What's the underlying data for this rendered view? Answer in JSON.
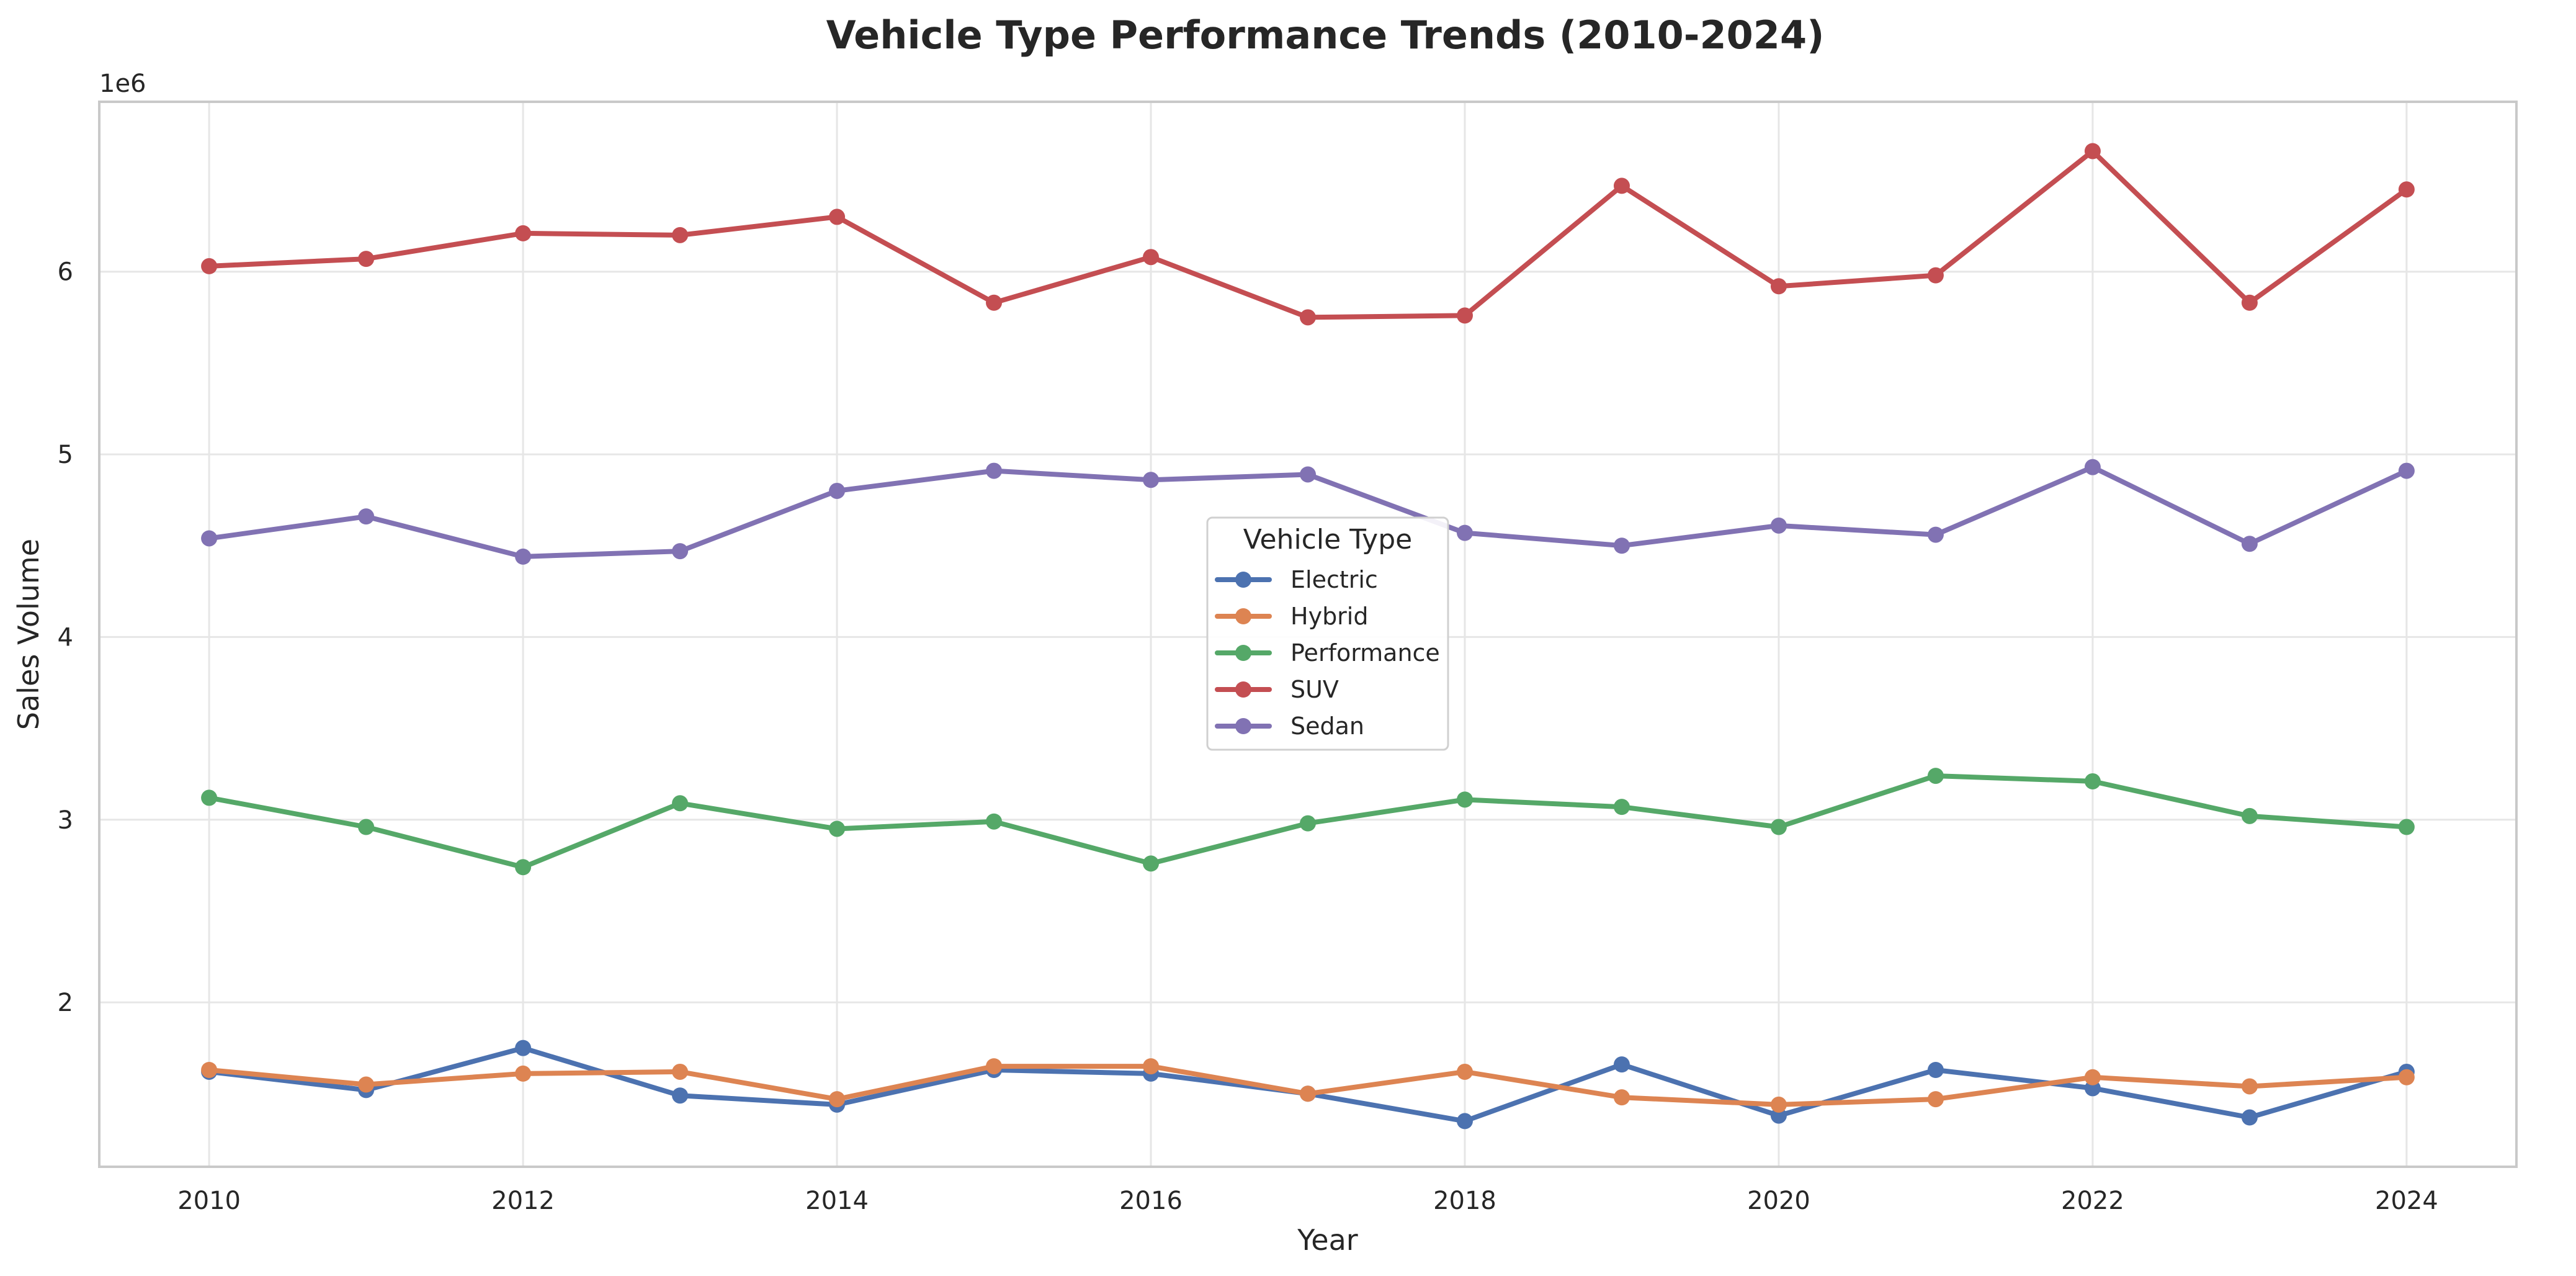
{
  "chart_data": {
    "type": "line",
    "title": "Vehicle Type Performance Trends (2010-2024)",
    "xlabel": "Year",
    "ylabel": "Sales Volume",
    "y_offset_label": "1e6",
    "x": [
      2010,
      2011,
      2012,
      2013,
      2014,
      2015,
      2016,
      2017,
      2018,
      2019,
      2020,
      2021,
      2022,
      2023,
      2024
    ],
    "x_ticks": [
      2010,
      2012,
      2014,
      2016,
      2018,
      2020,
      2022,
      2024
    ],
    "y_ticks": [
      2,
      3,
      4,
      5,
      6
    ],
    "xlim": [
      2009.3,
      2024.7
    ],
    "ylim": [
      1.1,
      6.93
    ],
    "grid": true,
    "legend": {
      "title": "Vehicle Type",
      "placement": "center"
    },
    "series": [
      {
        "name": "Electric",
        "color": "#4c72b0",
        "values": [
          1.62,
          1.52,
          1.75,
          1.49,
          1.44,
          1.63,
          1.61,
          1.5,
          1.35,
          1.66,
          1.38,
          1.63,
          1.53,
          1.37,
          1.62
        ]
      },
      {
        "name": "Hybrid",
        "color": "#dd8452",
        "values": [
          1.63,
          1.55,
          1.61,
          1.62,
          1.47,
          1.65,
          1.65,
          1.5,
          1.62,
          1.48,
          1.44,
          1.47,
          1.59,
          1.54,
          1.59
        ]
      },
      {
        "name": "Performance",
        "color": "#55a868",
        "values": [
          3.12,
          2.96,
          2.74,
          3.09,
          2.95,
          2.99,
          2.76,
          2.98,
          3.11,
          3.07,
          2.96,
          3.24,
          3.21,
          3.02,
          2.96
        ]
      },
      {
        "name": "SUV",
        "color": "#c44e52",
        "values": [
          6.03,
          6.07,
          6.21,
          6.2,
          6.3,
          5.83,
          6.08,
          5.75,
          5.76,
          6.47,
          5.92,
          5.98,
          6.66,
          5.83,
          6.45
        ]
      },
      {
        "name": "Sedan",
        "color": "#8172b3",
        "values": [
          4.54,
          4.66,
          4.44,
          4.47,
          4.8,
          4.91,
          4.86,
          4.89,
          4.57,
          4.5,
          4.61,
          4.56,
          4.93,
          4.51,
          4.91
        ]
      }
    ]
  }
}
